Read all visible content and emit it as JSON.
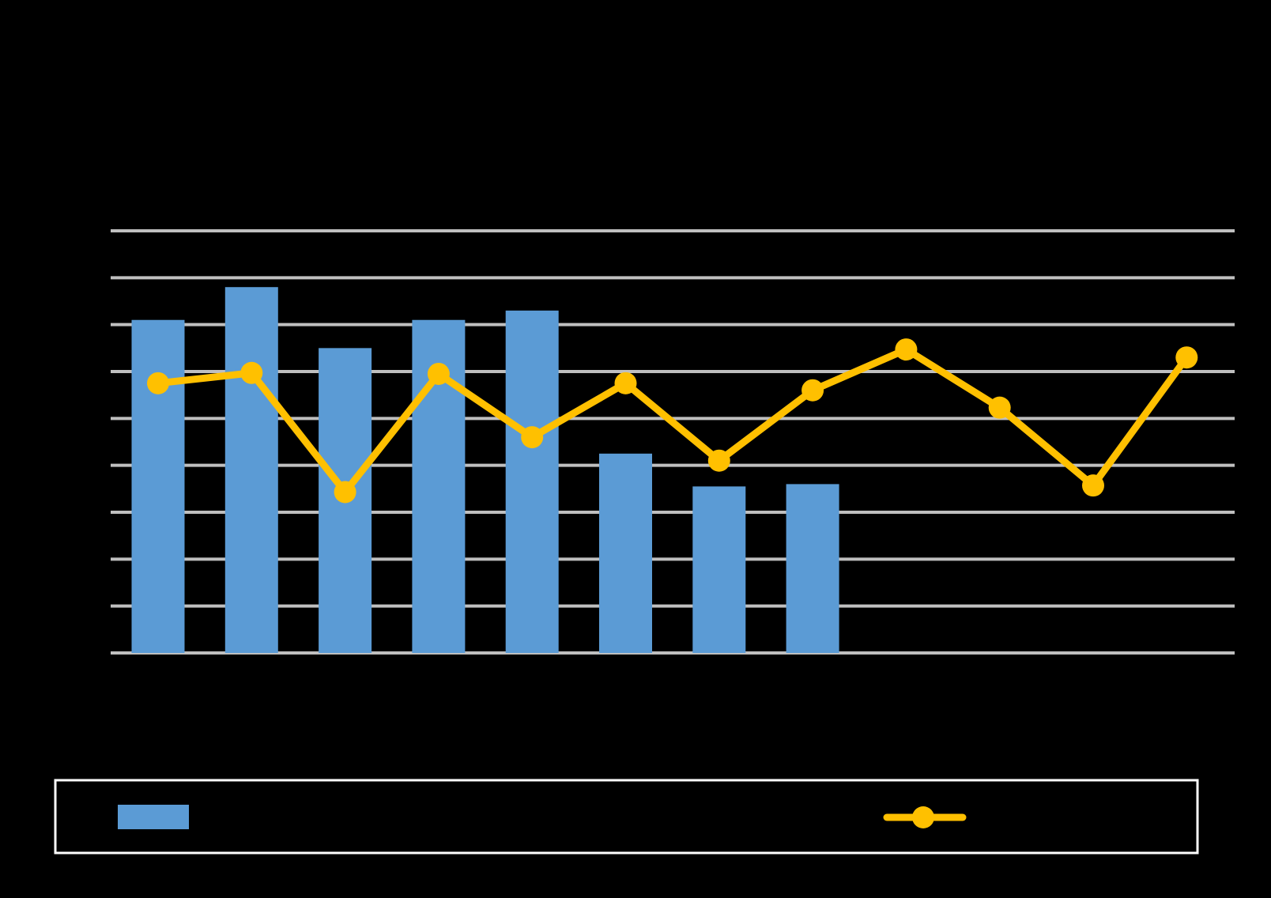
{
  "chart_data": {
    "type": "bar+line",
    "categories": [
      "",
      "",
      "",
      "",
      "",
      "",
      "",
      "",
      "",
      "",
      "",
      ""
    ],
    "ylim": [
      0,
      9
    ],
    "grid": true,
    "legend_position": "bottom",
    "series": [
      {
        "type": "bar",
        "color": "#5B9BD5",
        "values": [
          7.1,
          7.8,
          6.5,
          7.1,
          7.3,
          4.25,
          3.55,
          3.6,
          null,
          null,
          null,
          null
        ]
      },
      {
        "type": "line",
        "color": "#FFC000",
        "values": [
          5.75,
          5.97,
          3.43,
          5.95,
          4.6,
          5.75,
          4.1,
          5.6,
          6.47,
          5.23,
          3.57,
          6.3
        ]
      }
    ]
  },
  "colors": {
    "background": "#000000",
    "gridline": "#BFBFBF",
    "legend_border": "#FFFFFF"
  }
}
